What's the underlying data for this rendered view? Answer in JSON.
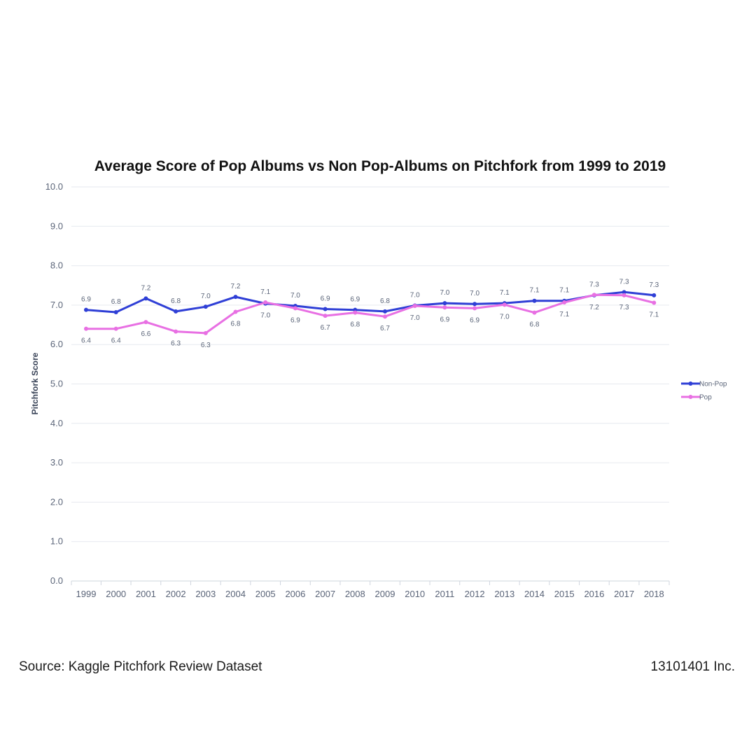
{
  "chart_data": {
    "type": "line",
    "title": "Average Score of Pop Albums vs Non Pop-Albums on Pitchfork from 1999 to 2019",
    "xlabel": "",
    "ylabel": "Pitchfork Score",
    "ylim": [
      0,
      10
    ],
    "yticks": [
      "0.0",
      "1.0",
      "2.0",
      "3.0",
      "4.0",
      "5.0",
      "6.0",
      "7.0",
      "8.0",
      "9.0",
      "10.0"
    ],
    "categories": [
      "1999",
      "2000",
      "2001",
      "2002",
      "2003",
      "2004",
      "2005",
      "2006",
      "2007",
      "2008",
      "2009",
      "2010",
      "2011",
      "2012",
      "2013",
      "2014",
      "2015",
      "2016",
      "2017",
      "2018"
    ],
    "series": [
      {
        "name": "Non-Pop",
        "color": "#2f3fd6",
        "values": [
          6.88,
          6.82,
          7.17,
          6.84,
          6.96,
          7.21,
          7.04,
          6.98,
          6.9,
          6.88,
          6.84,
          6.99,
          7.05,
          7.03,
          7.05,
          7.11,
          7.11,
          7.25,
          7.33,
          7.25
        ],
        "labels": [
          "6.9",
          "6.8",
          "7.2",
          "6.8",
          "7.0",
          "7.2",
          "7.0",
          "7.0",
          "6.9",
          "6.9",
          "6.8",
          "7.0",
          "7.0",
          "7.0",
          "7.1",
          "7.1",
          "7.1",
          "7.2",
          "7.3",
          "7.3"
        ]
      },
      {
        "name": "Pop",
        "color": "#e870e3",
        "values": [
          6.4,
          6.4,
          6.57,
          6.33,
          6.29,
          6.83,
          7.07,
          6.92,
          6.73,
          6.81,
          6.71,
          6.98,
          6.94,
          6.92,
          7.01,
          6.81,
          7.07,
          7.26,
          7.25,
          7.06
        ],
        "labels": [
          "6.4",
          "6.4",
          "6.6",
          "6.3",
          "6.3",
          "6.8",
          "7.1",
          "6.9",
          "6.7",
          "6.8",
          "6.7",
          "7.0",
          "6.9",
          "6.9",
          "7.0",
          "6.8",
          "7.1",
          "7.3",
          "7.3",
          "7.1"
        ]
      }
    ],
    "grid": true,
    "legend": "right"
  },
  "footer": {
    "source": "Source: Kaggle Pitchfork Review Dataset",
    "company": "13101401 Inc."
  }
}
